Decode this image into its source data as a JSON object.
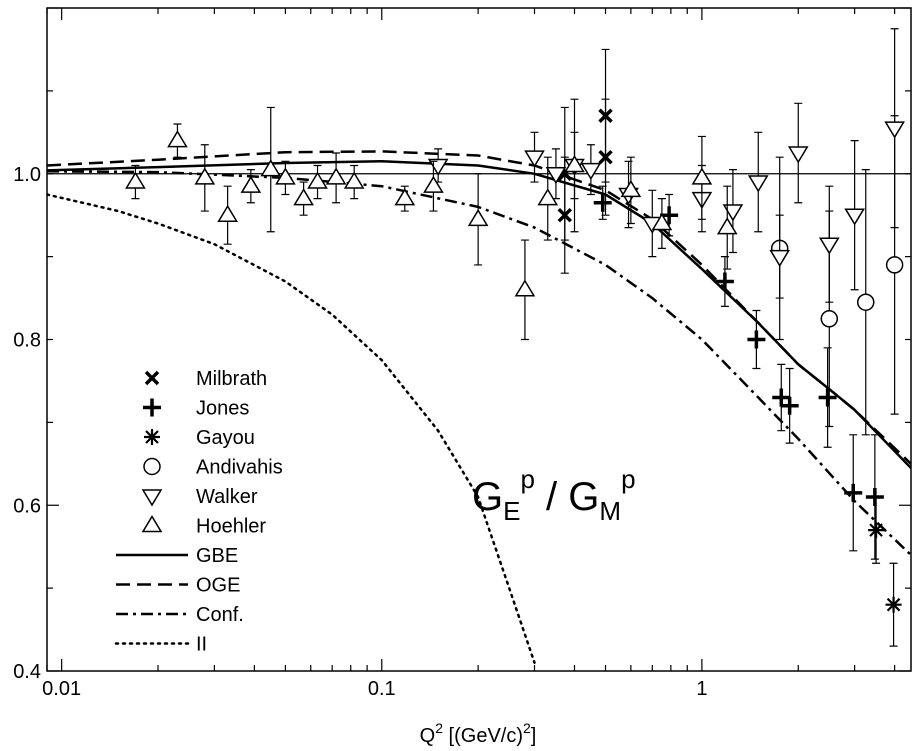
{
  "chart_data": {
    "type": "scatter",
    "title": "",
    "xlabel": "Q",
    "xlabel_sup": "2",
    "xlabel_units": "[(GeV/c)",
    "xlabel_units_sup": "2",
    "xlabel_close": "]",
    "ylabel": "",
    "xscale": "log",
    "xlim": [
      0.009,
      4.5
    ],
    "ylim": [
      0.4,
      1.2
    ],
    "x_ticks": [
      {
        "value": 0.01,
        "label": "0.01"
      },
      {
        "value": 0.1,
        "label": "0.1"
      },
      {
        "value": 1,
        "label": "1"
      }
    ],
    "y_ticks": [
      {
        "value": 0.4,
        "label": "0.4"
      },
      {
        "value": 0.6,
        "label": "0.6"
      },
      {
        "value": 0.8,
        "label": "0.8"
      },
      {
        "value": 1.0,
        "label": "1.0"
      }
    ],
    "reference_line": 1.0,
    "annotation": {
      "g": "G",
      "e_sub": "E",
      "p1": "p",
      "slash": " / ",
      "m_sub": "M",
      "p2": "p"
    },
    "series": [
      {
        "name": "Milbrath",
        "marker": "x",
        "points": [
          {
            "x": 0.373,
            "y": 1.0,
            "err": 0.08
          },
          {
            "x": 0.373,
            "y": 0.95,
            "err": 0.07
          },
          {
            "x": 0.5,
            "y": 1.07,
            "err": 0.08
          },
          {
            "x": 0.5,
            "y": 1.02,
            "err": 0.07
          }
        ]
      },
      {
        "name": "Jones",
        "marker": "plus",
        "points": [
          {
            "x": 0.49,
            "y": 0.965,
            "err": 0.02
          },
          {
            "x": 0.79,
            "y": 0.95,
            "err": 0.025
          },
          {
            "x": 1.18,
            "y": 0.87,
            "err": 0.03
          },
          {
            "x": 1.48,
            "y": 0.8,
            "err": 0.035
          },
          {
            "x": 1.77,
            "y": 0.73,
            "err": 0.04
          },
          {
            "x": 1.88,
            "y": 0.72,
            "err": 0.045
          },
          {
            "x": 2.47,
            "y": 0.73,
            "err": 0.06
          },
          {
            "x": 2.97,
            "y": 0.615,
            "err": 0.07
          },
          {
            "x": 3.47,
            "y": 0.61,
            "err": 0.075
          }
        ]
      },
      {
        "name": "Gayou",
        "marker": "asterisk",
        "points": [
          {
            "x": 3.5,
            "y": 0.57,
            "err": 0.04
          },
          {
            "x": 3.97,
            "y": 0.48,
            "err": 0.05
          }
        ]
      },
      {
        "name": "Andivahis",
        "marker": "circle",
        "points": [
          {
            "x": 1.75,
            "y": 0.91,
            "err": 0.11
          },
          {
            "x": 2.5,
            "y": 0.825,
            "err": 0.13
          },
          {
            "x": 3.25,
            "y": 0.845,
            "err": 0.16
          },
          {
            "x": 4.0,
            "y": 0.89,
            "err": 0.18
          }
        ]
      },
      {
        "name": "Walker",
        "marker": "triangle-down",
        "points": [
          {
            "x": 0.15,
            "y": 1.01,
            "err": 0.02
          },
          {
            "x": 0.3,
            "y": 1.02,
            "err": 0.03
          },
          {
            "x": 0.35,
            "y": 1.0,
            "err": 0.03
          },
          {
            "x": 0.4,
            "y": 1.01,
            "err": 0.04
          },
          {
            "x": 0.45,
            "y": 1.005,
            "err": 0.03
          },
          {
            "x": 0.59,
            "y": 0.975,
            "err": 0.04
          },
          {
            "x": 0.7,
            "y": 0.94,
            "err": 0.04
          },
          {
            "x": 1.0,
            "y": 0.97,
            "err": 0.04
          },
          {
            "x": 1.25,
            "y": 0.955,
            "err": 0.05
          },
          {
            "x": 1.5,
            "y": 0.99,
            "err": 0.06
          },
          {
            "x": 1.75,
            "y": 0.9,
            "err": 0.05
          },
          {
            "x": 2.0,
            "y": 1.025,
            "err": 0.06
          },
          {
            "x": 2.5,
            "y": 0.915,
            "err": 0.07
          },
          {
            "x": 3.0,
            "y": 0.95,
            "err": 0.09
          },
          {
            "x": 4.0,
            "y": 1.055,
            "err": 0.12
          }
        ]
      },
      {
        "name": "Hoehler",
        "marker": "triangle-up",
        "points": [
          {
            "x": 0.017,
            "y": 0.99,
            "err": 0.02
          },
          {
            "x": 0.023,
            "y": 1.04,
            "err": 0.02
          },
          {
            "x": 0.028,
            "y": 0.995,
            "err": 0.04
          },
          {
            "x": 0.033,
            "y": 0.95,
            "err": 0.035
          },
          {
            "x": 0.039,
            "y": 0.985,
            "err": 0.02
          },
          {
            "x": 0.045,
            "y": 1.005,
            "err": 0.075
          },
          {
            "x": 0.05,
            "y": 0.995,
            "err": 0.02
          },
          {
            "x": 0.057,
            "y": 0.97,
            "err": 0.02
          },
          {
            "x": 0.063,
            "y": 0.99,
            "err": 0.02
          },
          {
            "x": 0.072,
            "y": 0.995,
            "err": 0.03
          },
          {
            "x": 0.082,
            "y": 0.99,
            "err": 0.02
          },
          {
            "x": 0.118,
            "y": 0.97,
            "err": 0.015
          },
          {
            "x": 0.145,
            "y": 0.985,
            "err": 0.03
          },
          {
            "x": 0.2,
            "y": 0.945,
            "err": 0.055
          },
          {
            "x": 0.28,
            "y": 0.86,
            "err": 0.06
          },
          {
            "x": 0.4,
            "y": 1.01,
            "err": 0.08
          },
          {
            "x": 0.6,
            "y": 0.98,
            "err": 0.04
          },
          {
            "x": 0.75,
            "y": 0.94,
            "err": 0.03
          },
          {
            "x": 1.0,
            "y": 0.995,
            "err": 0.05
          },
          {
            "x": 0.33,
            "y": 0.97,
            "err": 0.05
          },
          {
            "x": 1.2,
            "y": 0.935,
            "err": 0.05
          }
        ]
      },
      {
        "name": "GBE",
        "marker": "solid-line",
        "curve": [
          [
            0.009,
            1.004
          ],
          [
            0.02,
            1.008
          ],
          [
            0.05,
            1.013
          ],
          [
            0.1,
            1.015
          ],
          [
            0.2,
            1.01
          ],
          [
            0.3,
            1.0
          ],
          [
            0.5,
            0.975
          ],
          [
            0.7,
            0.94
          ],
          [
            1.0,
            0.885
          ],
          [
            1.5,
            0.82
          ],
          [
            2.0,
            0.77
          ],
          [
            2.5,
            0.74
          ],
          [
            3.0,
            0.715
          ],
          [
            4.5,
            0.645
          ]
        ]
      },
      {
        "name": "OGE",
        "marker": "dashed-line",
        "curve": [
          [
            0.009,
            1.01
          ],
          [
            0.02,
            1.017
          ],
          [
            0.05,
            1.026
          ],
          [
            0.1,
            1.027
          ],
          [
            0.2,
            1.022
          ],
          [
            0.3,
            1.01
          ],
          [
            0.5,
            0.98
          ],
          [
            0.7,
            0.945
          ],
          [
            1.0,
            0.89
          ],
          [
            1.5,
            0.82
          ],
          [
            2.0,
            0.77
          ],
          [
            2.5,
            0.74
          ],
          [
            3.0,
            0.715
          ],
          [
            4.5,
            0.65
          ]
        ]
      },
      {
        "name": "Conf.",
        "marker": "dashdot-line",
        "curve": [
          [
            0.009,
            1.003
          ],
          [
            0.02,
            1.002
          ],
          [
            0.05,
            0.995
          ],
          [
            0.1,
            0.985
          ],
          [
            0.2,
            0.96
          ],
          [
            0.3,
            0.935
          ],
          [
            0.5,
            0.89
          ],
          [
            0.7,
            0.85
          ],
          [
            1.0,
            0.8
          ],
          [
            1.5,
            0.73
          ],
          [
            2.0,
            0.68
          ],
          [
            3.0,
            0.605
          ],
          [
            4.5,
            0.54
          ]
        ]
      },
      {
        "name": "II",
        "marker": "dotted-line",
        "curve": [
          [
            0.009,
            0.975
          ],
          [
            0.015,
            0.955
          ],
          [
            0.02,
            0.94
          ],
          [
            0.03,
            0.915
          ],
          [
            0.05,
            0.87
          ],
          [
            0.07,
            0.83
          ],
          [
            0.1,
            0.775
          ],
          [
            0.15,
            0.69
          ],
          [
            0.2,
            0.61
          ],
          [
            0.25,
            0.5
          ],
          [
            0.3,
            0.41
          ]
        ]
      }
    ]
  }
}
